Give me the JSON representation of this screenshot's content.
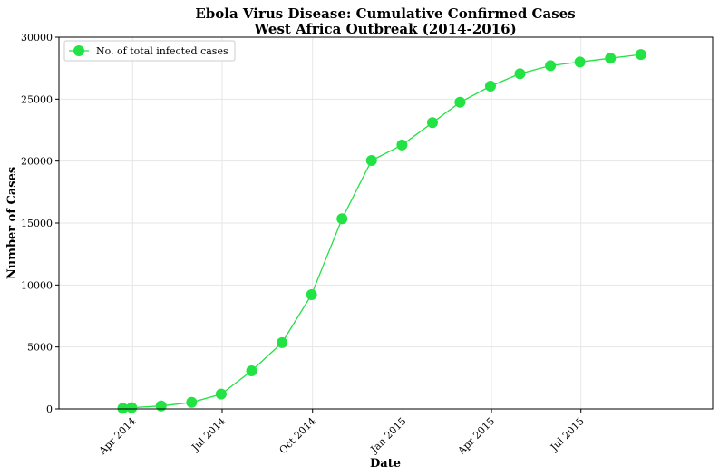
{
  "chart_data": {
    "type": "line",
    "title": "Ebola Virus Disease: Cumulative Confirmed Cases",
    "subtitle": "West Africa Outbreak (2014-2016)",
    "xlabel": "Date",
    "ylabel": "Number of Cases",
    "grid": true,
    "legend_position": "top-left",
    "ylim": [
      0,
      30000
    ],
    "xlim": [
      "2014-01-16",
      "2015-11-12"
    ],
    "y_ticks": [
      0,
      5000,
      10000,
      15000,
      20000,
      25000,
      30000
    ],
    "x_ticks": [
      {
        "date": "2014-04-01",
        "label": "Apr 2014"
      },
      {
        "date": "2014-07-01",
        "label": "Jul 2014"
      },
      {
        "date": "2014-10-01",
        "label": "Oct 2014"
      },
      {
        "date": "2015-01-01",
        "label": "Jan 2015"
      },
      {
        "date": "2015-04-01",
        "label": "Apr 2015"
      },
      {
        "date": "2015-07-01",
        "label": "Jul 2015"
      }
    ],
    "series": [
      {
        "name": "No. of total infected cases",
        "color": "#22e244",
        "x": [
          "2014-03-22",
          "2014-03-31",
          "2014-04-30",
          "2014-05-31",
          "2014-06-30",
          "2014-07-31",
          "2014-08-31",
          "2014-09-30",
          "2014-10-31",
          "2014-11-30",
          "2014-12-31",
          "2015-01-31",
          "2015-02-28",
          "2015-03-31",
          "2015-04-30",
          "2015-05-31",
          "2015-06-30",
          "2015-07-31",
          "2015-08-31"
        ],
        "y": [
          50,
          100,
          240,
          530,
          1200,
          3070,
          5350,
          9220,
          15350,
          20050,
          21300,
          23100,
          24750,
          26050,
          27050,
          27700,
          28000,
          28300,
          28600
        ]
      }
    ]
  }
}
